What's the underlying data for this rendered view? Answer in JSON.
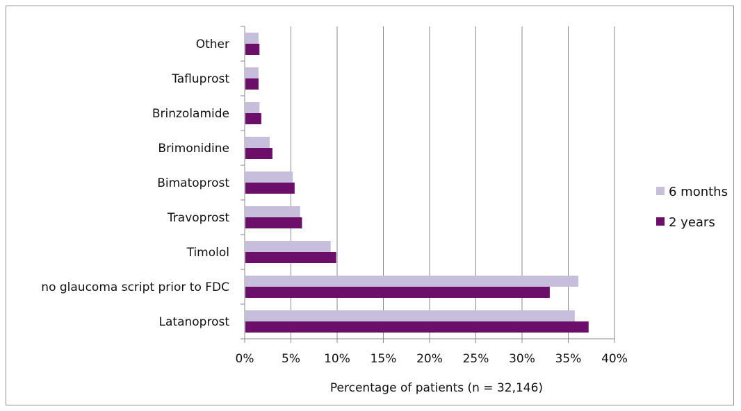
{
  "chart_data": {
    "type": "bar",
    "orientation": "horizontal",
    "categories": [
      "Latanoprost",
      "no glaucoma script prior to FDC",
      "Timolol",
      "Travoprost",
      "Bimatoprost",
      "Brimonidine",
      "Brinzolamide",
      "Tafluprost",
      "Other"
    ],
    "series": [
      {
        "name": "6 months",
        "color": "#c7bedb",
        "values": [
          35.7,
          36.1,
          9.3,
          6.0,
          5.2,
          2.7,
          1.6,
          1.5,
          1.5
        ]
      },
      {
        "name": "2 years",
        "color": "#6b0f6b",
        "values": [
          37.2,
          33.0,
          9.9,
          6.2,
          5.4,
          3.0,
          1.8,
          1.5,
          1.6
        ]
      }
    ],
    "xlim": [
      0,
      40
    ],
    "xticks": [
      0,
      5,
      10,
      15,
      20,
      25,
      30,
      35,
      40
    ],
    "xtick_labels": [
      "0%",
      "5%",
      "10%",
      "15%",
      "20%",
      "25%",
      "30%",
      "35%",
      "40%"
    ],
    "xlabel": "Percentage of patients (n = 32,146)",
    "ylabel": "",
    "title": "",
    "grid": "vertical",
    "legend_position": "right"
  }
}
